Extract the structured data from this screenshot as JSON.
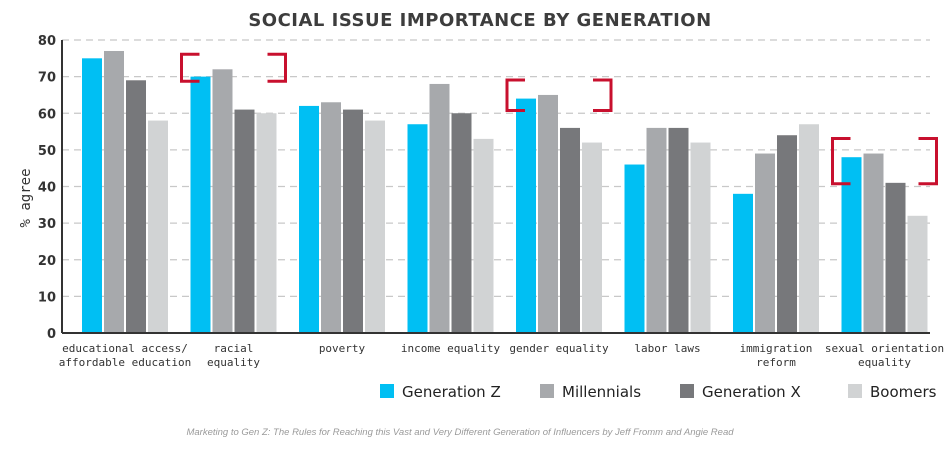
{
  "chart_data": {
    "type": "bar",
    "title": "SOCIAL ISSUE IMPORTANCE BY GENERATION",
    "xlabel": "",
    "ylabel": "% agree",
    "ylim": [
      0,
      80
    ],
    "yticks": [
      0,
      10,
      20,
      30,
      40,
      50,
      60,
      70,
      80
    ],
    "grid": true,
    "legend_position": "bottom-right",
    "categories": [
      [
        "educational access/",
        "affordable education"
      ],
      [
        "racial",
        "equality"
      ],
      [
        "poverty"
      ],
      [
        "income equality"
      ],
      [
        "gender equality"
      ],
      [
        "labor laws"
      ],
      [
        "immigration",
        "reform"
      ],
      [
        "sexual orientation",
        "equality"
      ]
    ],
    "series": [
      {
        "name": "Generation Z",
        "color": "#00bff3",
        "values": [
          75,
          70,
          62,
          57,
          64,
          46,
          38,
          48
        ]
      },
      {
        "name": "Millennials",
        "color": "#a7a9ac",
        "values": [
          77,
          72,
          63,
          68,
          65,
          56,
          49,
          49
        ]
      },
      {
        "name": "Generation X",
        "color": "#77787b",
        "values": [
          69,
          61,
          61,
          60,
          56,
          56,
          54,
          41
        ]
      },
      {
        "name": "Boomers",
        "color": "#d1d3d4",
        "values": [
          58,
          60,
          58,
          53,
          52,
          52,
          57,
          32
        ]
      }
    ],
    "highlighted_categories": [
      1,
      4,
      7
    ],
    "highlight_color": "#c8102e"
  },
  "source": "Marketing to Gen Z: The Rules for Reaching this Vast and Very Different Generation of Influencers by Jeff Fromm and Angie Read"
}
